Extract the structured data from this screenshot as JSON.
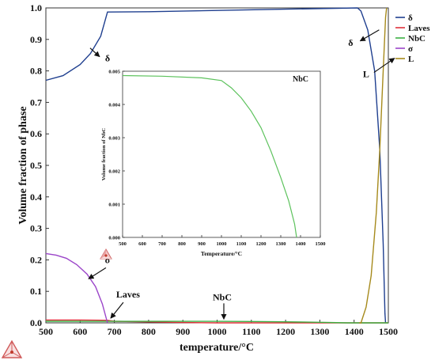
{
  "chart_data": [
    {
      "type": "line",
      "xlabel": "temperature/°C",
      "ylabel": "Volume fraction of phase",
      "xlim": [
        500,
        1500
      ],
      "ylim": [
        0,
        1.0
      ],
      "xticks": [
        "500",
        "600",
        "700",
        "800",
        "900",
        "1000",
        "1100",
        "1200",
        "1300",
        "1400",
        "1500"
      ],
      "yticks": [
        "0.0",
        "0.1",
        "0.2",
        "0.3",
        "0.4",
        "0.5",
        "0.6",
        "0.7",
        "0.8",
        "0.9",
        "1.0"
      ],
      "legend_position": "top-right",
      "series": [
        {
          "name": "δ",
          "color": "#1f3f8f",
          "points": [
            [
              500,
              0.77
            ],
            [
              550,
              0.785
            ],
            [
              600,
              0.82
            ],
            [
              630,
              0.855
            ],
            [
              660,
              0.91
            ],
            [
              680,
              0.987
            ],
            [
              800,
              0.988
            ],
            [
              1000,
              0.992
            ],
            [
              1200,
              0.996
            ],
            [
              1410,
              1.0
            ],
            [
              1420,
              0.99
            ],
            [
              1440,
              0.93
            ],
            [
              1460,
              0.8
            ],
            [
              1475,
              0.55
            ],
            [
              1485,
              0.25
            ],
            [
              1490,
              0.03
            ],
            [
              1492,
              0.0
            ]
          ]
        },
        {
          "name": "Laves",
          "color": "#e0303a",
          "points": [
            [
              500,
              0.009
            ],
            [
              600,
              0.009
            ],
            [
              680,
              0.008
            ],
            [
              700,
              0.005
            ],
            [
              800,
              0.003
            ],
            [
              900,
              0.001
            ],
            [
              1000,
              0.0
            ],
            [
              1500,
              0.0
            ]
          ]
        },
        {
          "name": "NbC",
          "color": "#3cb043",
          "points": [
            [
              500,
              0.005
            ],
            [
              1000,
              0.0047
            ],
            [
              1100,
              0.0043
            ],
            [
              1200,
              0.0033
            ],
            [
              1300,
              0.0018
            ],
            [
              1380,
              0.0
            ],
            [
              1500,
              0.0
            ]
          ]
        },
        {
          "name": "σ",
          "color": "#9b45c9",
          "points": [
            [
              500,
              0.22
            ],
            [
              530,
              0.215
            ],
            [
              560,
              0.205
            ],
            [
              590,
              0.185
            ],
            [
              620,
              0.155
            ],
            [
              645,
              0.115
            ],
            [
              665,
              0.06
            ],
            [
              680,
              0.0
            ]
          ]
        },
        {
          "name": "L",
          "color": "#a68a1c",
          "points": [
            [
              1415,
              0.0
            ],
            [
              1420,
              0.0
            ],
            [
              1435,
              0.05
            ],
            [
              1450,
              0.15
            ],
            [
              1465,
              0.35
            ],
            [
              1475,
              0.55
            ],
            [
              1485,
              0.8
            ],
            [
              1492,
              0.97
            ],
            [
              1495,
              1.0
            ]
          ]
        }
      ],
      "annotations": [
        {
          "text": "δ",
          "at": [
            680,
            0.83
          ]
        },
        {
          "text": "σ",
          "at": [
            680,
            0.19
          ]
        },
        {
          "text": "Laves",
          "at": [
            740,
            0.08
          ]
        },
        {
          "text": "NbC",
          "at": [
            1015,
            0.072
          ]
        },
        {
          "text": "δ",
          "at": [
            1390,
            0.88
          ]
        },
        {
          "text": "L",
          "at": [
            1435,
            0.78
          ]
        }
      ]
    },
    {
      "type": "line",
      "title": "NbC",
      "xlabel": "Temperature/°C",
      "ylabel": "Volume fraction of NbC",
      "xlim": [
        500,
        1500
      ],
      "ylim": [
        0,
        0.005
      ],
      "xticks": [
        "500",
        "600",
        "700",
        "800",
        "900",
        "1000",
        "1100",
        "1200",
        "1300",
        "1400",
        "1500"
      ],
      "yticks": [
        "0.000",
        "0.001",
        "0.002",
        "0.003",
        "0.004",
        "0.005"
      ],
      "series": [
        {
          "name": "NbC",
          "color": "#5cc25c",
          "points": [
            [
              500,
              0.00487
            ],
            [
              700,
              0.00485
            ],
            [
              900,
              0.0048
            ],
            [
              1000,
              0.00472
            ],
            [
              1050,
              0.0045
            ],
            [
              1100,
              0.0042
            ],
            [
              1150,
              0.0038
            ],
            [
              1200,
              0.0033
            ],
            [
              1250,
              0.0026
            ],
            [
              1300,
              0.0018
            ],
            [
              1340,
              0.0011
            ],
            [
              1370,
              0.0004
            ],
            [
              1380,
              0.0
            ]
          ]
        }
      ]
    }
  ]
}
